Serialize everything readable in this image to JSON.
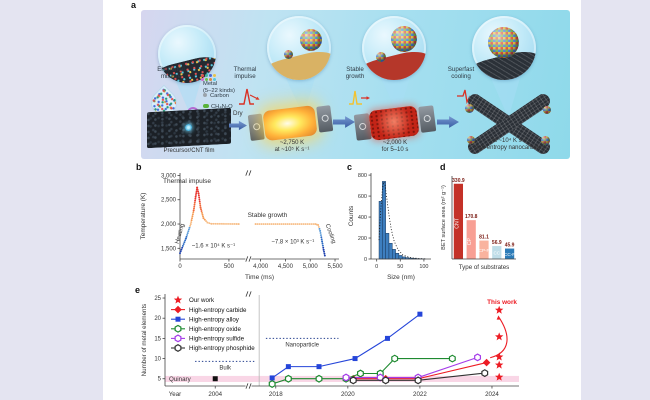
{
  "figure": {
    "bg": "#e4e4f1",
    "panel_labels": {
      "a": "a",
      "b": "b",
      "c": "c",
      "d": "d",
      "e": "e"
    }
  },
  "panel_a": {
    "stage1_label": "Elemental\nmixture",
    "legend": {
      "metal": "Metal\n(5–22 kinds)",
      "carbon": "Carbon",
      "urea": "CH₄N₂O",
      "metal_dot_colors": [
        "#e05252",
        "#46b5a2",
        "#4668d9",
        "#e8c24a",
        "#d268c8",
        "#6abf4b",
        "#e08a3c",
        "#58c8e0"
      ]
    },
    "stage2_label": "Thermal\nimpulse",
    "stage3_label": "Stable\ngrowth",
    "stage4_label": "Superfast\ncooling",
    "dry_label": "Dry",
    "film_caption": "Precursor/CNT film",
    "heater1_caption": "~2,750 K\nat ~10⁵ K s⁻¹",
    "heater2_caption": "~2,000 K\nfor 5–10 s",
    "final_caption": "At ~10⁴ K s⁻¹\nhigh-entropy nanocarbides"
  },
  "chart_data": [
    {
      "id": "b",
      "type": "scatter-line",
      "xlabel": "Time (ms)",
      "ylabel": "Temperature (K)",
      "ylim": [
        1280,
        3050
      ],
      "yticks": [
        {
          "v": 1500,
          "l": "1,500"
        },
        {
          "v": 2000,
          "l": "2,000"
        },
        {
          "v": 2500,
          "l": "2,500"
        },
        {
          "v": 3000,
          "l": "3,000"
        }
      ],
      "x_segments": [
        {
          "range": [
            0,
            650
          ],
          "frac": [
            0,
            0.4
          ]
        },
        {
          "range": [
            3850,
            5580
          ],
          "frac": [
            0.46,
            1.0
          ]
        }
      ],
      "break_frac": 0.43,
      "xticks": [
        {
          "v": 0,
          "l": "0"
        },
        {
          "v": 500,
          "l": "500"
        },
        {
          "v": 4000,
          "l": "4,000"
        },
        {
          "v": 4500,
          "l": "4,500"
        },
        {
          "v": 5000,
          "l": "5,000"
        },
        {
          "v": 5500,
          "l": "5,500"
        }
      ],
      "profile": [
        [
          0,
          1400
        ],
        [
          60,
          1700
        ],
        [
          110,
          2000
        ],
        [
          140,
          2280
        ],
        [
          160,
          2560
        ],
        [
          175,
          2750
        ],
        [
          190,
          2630
        ],
        [
          210,
          2340
        ],
        [
          240,
          2120
        ],
        [
          280,
          2030
        ],
        [
          320,
          2005
        ],
        [
          600,
          2000
        ],
        [
          3900,
          2000
        ],
        [
          5100,
          2000
        ],
        [
          5160,
          1980
        ],
        [
          5200,
          1860
        ],
        [
          5240,
          1640
        ],
        [
          5270,
          1470
        ],
        [
          5295,
          1350
        ]
      ],
      "annotations": {
        "impulse": "Thermal impulse",
        "heating": "Heating",
        "stable": "Stable growth",
        "cooling": "Cooling",
        "heat_rate": "~1.6 × 10⁴ K s⁻¹",
        "cool_rate": "−7.8 × 10³ K s⁻¹"
      }
    },
    {
      "id": "c",
      "type": "histogram",
      "xlabel": "Size (nm)",
      "ylabel": "Counts",
      "ylim": [
        0,
        820
      ],
      "yticks": [
        {
          "v": 0,
          "l": "0"
        },
        {
          "v": 200,
          "l": "200"
        },
        {
          "v": 400,
          "l": "400"
        },
        {
          "v": 600,
          "l": "600"
        },
        {
          "v": 800,
          "l": "800"
        }
      ],
      "xlim": [
        -12,
        115
      ],
      "xticks": [
        {
          "v": 0,
          "l": "0"
        },
        {
          "v": 50,
          "l": "50"
        },
        {
          "v": 100,
          "l": "100"
        }
      ],
      "bin_start": 5,
      "bin_width": 7,
      "counts": [
        550,
        740,
        245,
        150,
        92,
        55,
        34,
        20,
        13,
        9,
        6,
        4,
        3,
        2
      ],
      "bar_color": "#3d7ebf",
      "bar_edge": "#1b3a5e",
      "fit": [
        [
          5,
          180
        ],
        [
          8,
          430
        ],
        [
          12,
          660
        ],
        [
          15,
          735
        ],
        [
          18,
          700
        ],
        [
          22,
          560
        ],
        [
          26,
          420
        ],
        [
          31,
          280
        ],
        [
          37,
          170
        ],
        [
          45,
          90
        ],
        [
          55,
          40
        ],
        [
          70,
          14
        ],
        [
          90,
          4
        ],
        [
          105,
          2
        ]
      ]
    },
    {
      "id": "d",
      "type": "bar",
      "xlabel": "Type of substrates",
      "ylabel": "BET surface area (m² g⁻¹)",
      "ylim": [
        0,
        365
      ],
      "categories": [
        "CNT",
        "CP",
        "CP-F",
        "CC",
        "CC-F"
      ],
      "values": [
        330.9,
        170.8,
        81.1,
        56.9,
        45.9
      ],
      "value_labels": [
        "330.9",
        "170.8",
        "81.1",
        "56.9",
        "45.9"
      ],
      "colors": [
        "#c43127",
        "#f89f94",
        "#f9b39e",
        "#bfdde8",
        "#2d7cb8"
      ],
      "value_color": "#7a1a12"
    },
    {
      "id": "e",
      "type": "scatter-line",
      "xlabel": "Year",
      "ylabel": "Number of metal elements",
      "ylim": [
        3.2,
        26
      ],
      "yticks": [
        {
          "v": 5,
          "l": "5"
        },
        {
          "v": 10,
          "l": "10"
        },
        {
          "v": 15,
          "l": "15"
        },
        {
          "v": 20,
          "l": "20"
        },
        {
          "v": 25,
          "l": "25"
        }
      ],
      "x_segments": [
        {
          "range": [
            2003.2,
            2005.3
          ],
          "frac": [
            0.1,
            0.21
          ]
        },
        {
          "range": [
            2017.5,
            2024.75
          ],
          "frac": [
            0.262,
            1.0
          ]
        }
      ],
      "break_frac": 0.236,
      "vline_frac": 0.266,
      "xticks": [
        {
          "v": 2004,
          "l": "2004"
        },
        {
          "v": 2018,
          "l": "2018"
        },
        {
          "v": 2020,
          "l": "2020"
        },
        {
          "v": 2022,
          "l": "2022"
        },
        {
          "v": 2024,
          "l": "2024"
        }
      ],
      "band": {
        "y": [
          4.2,
          5.7
        ],
        "color": "#f9d6e6",
        "label": "Quinary"
      },
      "dashed": [
        {
          "y": 9.3,
          "frac": [
            0.085,
            0.255
          ],
          "label": "Bulk"
        },
        {
          "y": 15,
          "frac": [
            0.285,
            0.49
          ],
          "label": "Nanoparticle"
        }
      ],
      "series": [
        {
          "name": "Our work",
          "marker": "star",
          "color": "#ed1c24",
          "line": false,
          "points": [
            [
              2024.2,
              5.4
            ],
            [
              2024.2,
              8.4
            ],
            [
              2024.2,
              10.4
            ],
            [
              2024.2,
              15.4
            ],
            [
              2024.2,
              22
            ]
          ]
        },
        {
          "name": "High-entropy carbide",
          "marker": "diamond",
          "color": "#ed1c24",
          "line": true,
          "points": [
            [
              2020.15,
              5
            ],
            [
              2021.05,
              5
            ],
            [
              2021.95,
              5
            ],
            [
              2023.85,
              9
            ]
          ]
        },
        {
          "name": "High-entropy alloy",
          "marker": "square",
          "color": "#2545d9",
          "line": true,
          "points": [
            [
              2017.9,
              5.2
            ],
            [
              2018.35,
              8
            ],
            [
              2019.2,
              8
            ],
            [
              2020.2,
              10
            ],
            [
              2021.1,
              15
            ],
            [
              2022,
              21
            ]
          ]
        },
        {
          "name": "High-entropy oxide",
          "marker": "hex",
          "color": "#1e8a30",
          "line": true,
          "points": [
            [
              2017.9,
              3.7
            ],
            [
              2018.35,
              5
            ],
            [
              2019.2,
              5
            ],
            [
              2019.95,
              5
            ],
            [
              2020.35,
              6.3
            ],
            [
              2020.9,
              6.3
            ],
            [
              2021.3,
              10
            ],
            [
              2022.9,
              10
            ]
          ]
        },
        {
          "name": "High-entropy sulfide",
          "marker": "hex",
          "color": "#a43ce8",
          "line": true,
          "points": [
            [
              2019.95,
              5.3
            ],
            [
              2020.9,
              5.3
            ],
            [
              2021.95,
              5.3
            ],
            [
              2023.6,
              10.3
            ]
          ]
        },
        {
          "name": "High-entropy phosphide",
          "marker": "hex",
          "color": "#333333",
          "line": true,
          "points": [
            [
              2020.15,
              4.6
            ],
            [
              2021.05,
              4.6
            ],
            [
              2021.95,
              4.6
            ],
            [
              2023.8,
              6.4
            ]
          ]
        }
      ],
      "historic_point": {
        "marker": "square",
        "color": "#111111",
        "at": [
          2004,
          5
        ]
      },
      "this_work": {
        "label": "This work",
        "color": "#ed1c24"
      }
    }
  ]
}
